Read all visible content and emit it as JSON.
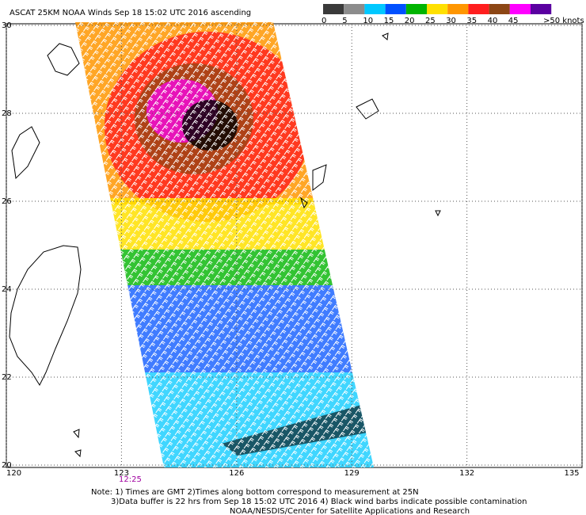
{
  "header": {
    "title": "ASCAT 25KM NOAA Winds Sep 18 15:02 UTC 2016 ascending"
  },
  "legend": {
    "labels": [
      "0",
      "5",
      "10",
      "15",
      "20",
      "25",
      "30",
      "35",
      "40",
      "45",
      ">50 knots"
    ],
    "colors": [
      "#3a3a3a",
      "#8c8c8c",
      "#00c8ff",
      "#0050ff",
      "#00b400",
      "#ffe000",
      "#ff9600",
      "#ff1e1e",
      "#8c4614",
      "#ff00ff",
      "#5a00a0"
    ]
  },
  "grid": {
    "lat_labels": [
      30,
      28,
      26,
      24,
      22,
      20
    ],
    "lon_labels": [
      120,
      123,
      126,
      129,
      132,
      135
    ]
  },
  "time_labels": [
    "12:25"
  ],
  "notes": [
    "Note: 1) Times are GMT 2)Times along bottom correspond to measurement at 25N",
    "3)Data buffer is 22 hrs from Sep 18 15:02 UTC 2016 4) Black wind barbs indicate possible contamination",
    "NOAA/NESDIS/Center for Satellite Applications and Research"
  ]
}
